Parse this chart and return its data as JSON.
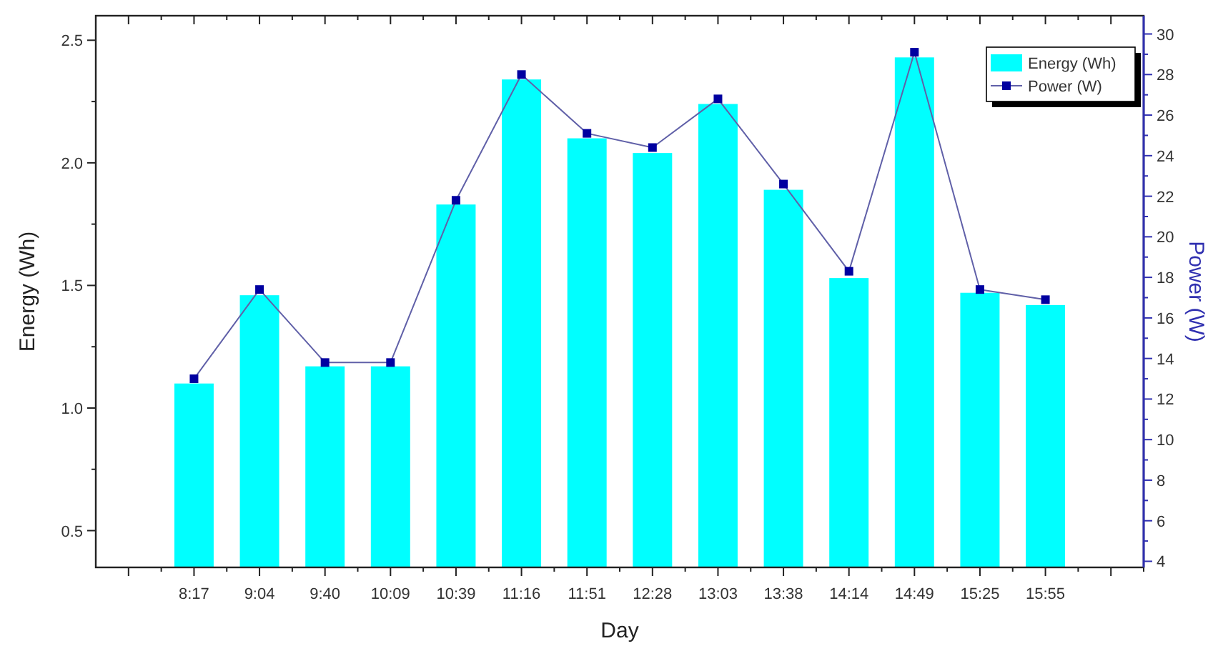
{
  "chart_data": {
    "type": "bar",
    "xlabel": "Day",
    "ylabel": "Energy (Wh)",
    "y2label": "Power (W)",
    "categories": [
      null,
      "8:17",
      "9:04",
      "9:40",
      "10:09",
      "10:39",
      "11:16",
      "11:51",
      "12:28",
      "13:03",
      "13:38",
      "14:14",
      "14:49",
      "15:25",
      "15:55",
      null
    ],
    "series": [
      {
        "name": "Energy (Wh)",
        "color": "#00ffff",
        "values": [
          null,
          1.1,
          1.46,
          1.17,
          1.17,
          1.83,
          2.34,
          2.1,
          2.04,
          2.24,
          1.89,
          1.53,
          2.43,
          1.47,
          1.42,
          null
        ]
      },
      {
        "name": "Power (W)",
        "type": "line",
        "axis": "y2",
        "color": "#0000a0",
        "marker": "square",
        "values": [
          null,
          13.0,
          17.4,
          13.8,
          13.8,
          21.8,
          28.0,
          25.1,
          24.4,
          26.8,
          22.6,
          18.3,
          29.1,
          17.4,
          16.9,
          null
        ]
      }
    ],
    "ylim": [
      0.35,
      2.6
    ],
    "yticks": [
      0.5,
      {
        "value": 0.75,
        "label": null
      },
      "1.0",
      {
        "value": 1.25,
        "label": null
      },
      1.5,
      {
        "value": 1.75,
        "label": null
      },
      "2.0",
      {
        "value": 2.25,
        "label": null
      },
      2.5
    ],
    "y2lim": [
      3.7,
      30.9
    ],
    "y2ticks": [
      4,
      {
        "value": 5,
        "label": null
      },
      6,
      {
        "value": 7,
        "label": null
      },
      8,
      {
        "value": 9,
        "label": null
      },
      10,
      {
        "value": 11,
        "label": null
      },
      12,
      {
        "value": 13,
        "label": null
      },
      14,
      {
        "value": 15,
        "label": null
      },
      16,
      {
        "value": 17,
        "label": null
      },
      18,
      {
        "value": 19,
        "label": null
      },
      20,
      {
        "value": 21,
        "label": null
      },
      22,
      {
        "value": 23,
        "label": null
      },
      24,
      {
        "value": 25,
        "label": null
      },
      26,
      {
        "value": 27,
        "label": null
      },
      28,
      {
        "value": 29,
        "label": null
      },
      30
    ],
    "legend": "top right",
    "grid": false
  }
}
